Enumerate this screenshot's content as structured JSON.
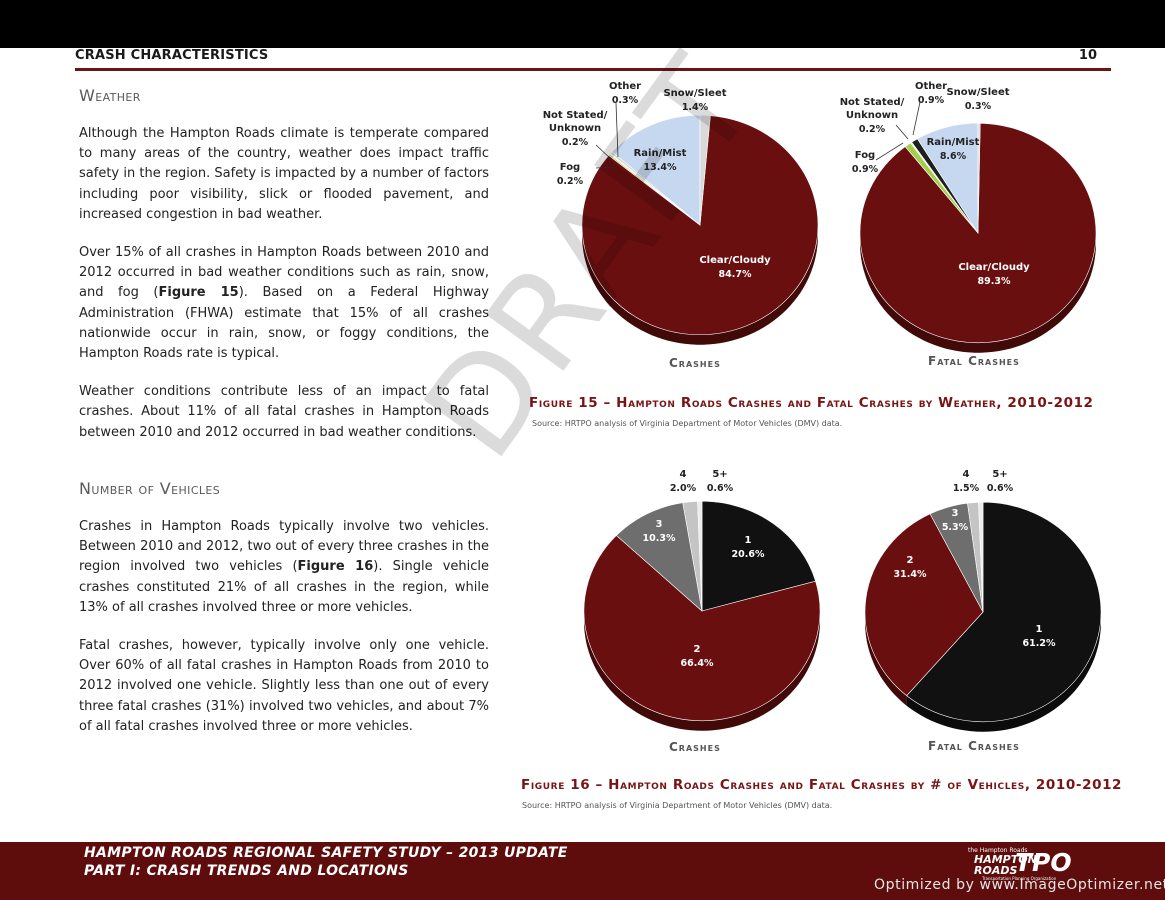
{
  "header": {
    "section": "CRASH CHARACTERISTICS",
    "page_number": "10"
  },
  "weather": {
    "heading": "Weather",
    "p1": "Although the Hampton Roads climate is temperate compared to many areas of the country, weather does impact traffic safety in the region.  Safety is impacted by a number of factors including poor visibility, slick or flooded pavement, and increased congestion in bad weather.",
    "p2_a": "Over 15% of all crashes in Hampton Roads between 2010 and 2012 occurred in bad weather conditions such as rain, snow, and fog (",
    "p2_ref": "Figure 15",
    "p2_b": ").  Based on a Federal Highway Administration (FHWA) estimate that 15% of all crashes nationwide occur in rain, snow, or foggy conditions, the Hampton Roads rate is typical.",
    "p3": "Weather conditions contribute less of an impact to fatal crashes.  About 11% of all fatal crashes in Hampton Roads between 2010 and 2012 occurred in bad weather conditions."
  },
  "vehicles": {
    "heading": "Number of Vehicles",
    "p1_a": "Crashes in Hampton Roads typically involve two vehicles.  Between 2010 and 2012, two out of every three crashes in the region involved two vehicles (",
    "p1_ref": "Figure 16",
    "p1_b": ").  Single vehicle crashes constituted 21% of all crashes in the region, while 13% of all crashes involved three or more vehicles.",
    "p2": "Fatal crashes, however, typically involve only one vehicle.  Over 60% of all fatal crashes in Hampton Roads from 2010 to 2012 involved one vehicle.  Slightly less than one out of every three fatal crashes (31%) involved two vehicles, and about 7% of all fatal crashes involved three or more vehicles."
  },
  "figure15": {
    "caption": "Figure 15 – Hampton Roads Crashes and Fatal Crashes by Weather, 2010-2012",
    "source": "Source:  HRTPO analysis of Virginia Department of Motor Vehicles (DMV) data."
  },
  "figure16": {
    "caption": "Figure 16 – Hampton Roads Crashes and Fatal Crashes by # of Vehicles, 2010-2012",
    "source": "Source:  HRTPO analysis of Virginia Department of Motor Vehicles (DMV) data."
  },
  "chart_data": [
    {
      "type": "pie",
      "title": "Crashes",
      "figure": "Figure 15",
      "categories": [
        "Clear/Cloudy",
        "Fog",
        "Not Stated/Unknown",
        "Other",
        "Rain/Mist",
        "Snow/Sleet"
      ],
      "values": [
        84.7,
        0.2,
        0.2,
        0.3,
        13.4,
        1.4
      ],
      "labels": [
        "84.7%",
        "0.2%",
        "0.2%",
        "0.3%",
        "13.4%",
        "1.4%"
      ],
      "colors": [
        "#6a0f0f",
        "#a4cf4a",
        "#eff2e0",
        "#d0d0d0",
        "#c6d8ef",
        "#d9d9d9"
      ]
    },
    {
      "type": "pie",
      "title": "Fatal Crashes",
      "figure": "Figure 15",
      "categories": [
        "Clear/Cloudy",
        "Fog",
        "Not Stated/Unknown",
        "Other",
        "Rain/Mist",
        "Snow/Sleet"
      ],
      "values": [
        89.3,
        0.9,
        0.2,
        0.9,
        8.6,
        0.3
      ],
      "labels": [
        "89.3%",
        "0.9%",
        "0.2%",
        "0.9%",
        "8.6%",
        "0.3%"
      ],
      "colors": [
        "#6a0f0f",
        "#a4cf4a",
        "#eff2e0",
        "#1f1f1f",
        "#c6d8ef",
        "#d9d9d9"
      ]
    },
    {
      "type": "pie",
      "title": "Crashes",
      "figure": "Figure 16",
      "categories": [
        "1",
        "2",
        "3",
        "4",
        "5+"
      ],
      "values": [
        20.6,
        66.4,
        10.3,
        2.0,
        0.6
      ],
      "labels": [
        "20.6%",
        "66.4%",
        "10.3%",
        "2.0%",
        "0.6%"
      ],
      "colors": [
        "#111111",
        "#6a0f0f",
        "#6e6e6e",
        "#c4c4c4",
        "#ececec"
      ]
    },
    {
      "type": "pie",
      "title": "Fatal Crashes",
      "figure": "Figure 16",
      "categories": [
        "1",
        "2",
        "3",
        "4",
        "5+"
      ],
      "values": [
        61.2,
        31.4,
        5.3,
        1.5,
        0.6
      ],
      "labels": [
        "61.2%",
        "31.4%",
        "5.3%",
        "1.5%",
        "0.6%"
      ],
      "colors": [
        "#111111",
        "#6a0f0f",
        "#6e6e6e",
        "#c4c4c4",
        "#ececec"
      ]
    }
  ],
  "watermark": "DRAFT",
  "footer": {
    "line1": "HAMPTON ROADS REGIONAL SAFETY STUDY – 2013 UPDATE",
    "line2": "PART I: CRASH TRENDS AND LOCATIONS",
    "logo_top": "the Hampton Roads",
    "logo_name1": "HAMPTON",
    "logo_name2": "ROADS",
    "logo_tpo": "TPO",
    "logo_sub": "Transportation Planning Organization",
    "optimizer": "Optimized by www.ImageOptimizer.net"
  }
}
